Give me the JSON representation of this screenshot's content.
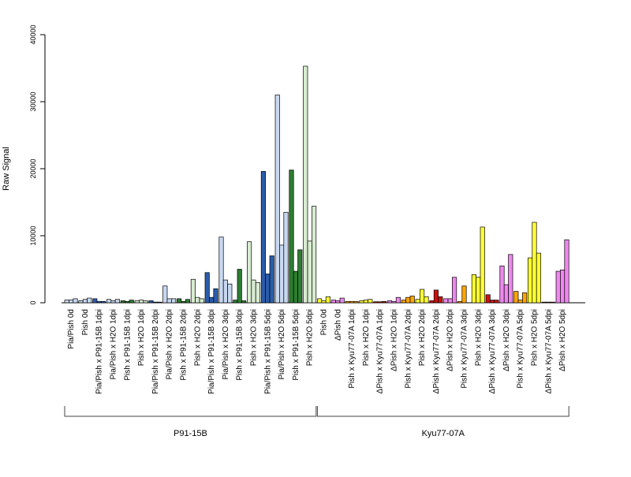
{
  "chart_data": {
    "type": "bar",
    "ylabel": "Raw Signal",
    "ylim": [
      0,
      40000
    ],
    "yticks": [
      0,
      10000,
      20000,
      30000,
      40000
    ],
    "ytick_labels": [
      "0",
      "10000",
      "20000",
      "30000",
      "40000"
    ],
    "replicates": 3,
    "groups": [
      {
        "label": "P91-15B",
        "first": 0,
        "last": 17
      },
      {
        "label": "Kyu77-07A",
        "first": 18,
        "last": 35
      }
    ],
    "categories": [
      "Pia/Pish 0d",
      "Pish 0d",
      "Pia/Pish x P91-15B 1dpi",
      "Pia/Pish x H2O 1dpi",
      "Pish x P91-15B 1dpi",
      "Pish x H2O 1dpi",
      "Pia/Pish x P91-15B 2dpi",
      "Pia/Pish x H2O 2dpi",
      "Pish x P91-15B 2dpi",
      "Pish x H2O 2dpi",
      "Pia/Pish x P91-15B 3dpi",
      "Pia/Pish x H2O 3dpi",
      "Pish x P91-15B 3dpi",
      "Pish x H2O 3dpi",
      "Pia/Pish x P91-15B 5dpi",
      "Pia/Pish x H2O 5dpi",
      "Pish x P91-15B 5dpi",
      "Pish x H2O 5dpi",
      "Pish 0d",
      "ΔPish 0d",
      "Pish x Kyu77-07A 1dpi",
      "Pish x H2O 1dpi",
      "ΔPish x Kyu77-07A 1dpi",
      "ΔPish x H2O 1dpi",
      "Pish x Kyu77-07A 2dpi",
      "Pish x H2O 2dpi",
      "ΔPish x Kyu77-07A 2dpi",
      "ΔPish x H2O 2dpi",
      "Pish x Kyu77-07A 3dpi",
      "Pish x H2O 3dpi",
      "ΔPish x Kyu77-07A 3dpi",
      "ΔPish x H2O 3dpi",
      "Pish x Kyu77-07A 5dpi",
      "Pish x H2O 5dpi",
      "ΔPish x Kyu77-07A 5dpi",
      "ΔPish x H2O 5dpi"
    ],
    "colors": [
      "#c8d8f0",
      "#c8d8f0",
      "#2a5caa",
      "#c8d8f0",
      "#2e7d32",
      "#d8ecd0",
      "#2a5caa",
      "#c8d8f0",
      "#2e7d32",
      "#d8ecd0",
      "#2a5caa",
      "#c8d8f0",
      "#2e7d32",
      "#d8ecd0",
      "#2a5caa",
      "#c8d8f0",
      "#2e7d32",
      "#d8ecd0",
      "#ffff33",
      "#ee88ee",
      "#ffa500",
      "#ffff33",
      "#cc1111",
      "#ee88ee",
      "#ffa500",
      "#ffff33",
      "#cc1111",
      "#ee88ee",
      "#ffa500",
      "#ffff33",
      "#cc1111",
      "#ee88ee",
      "#ffa500",
      "#ffff33",
      "#cc1111",
      "#ee88ee"
    ],
    "series": [
      {
        "values": [
          400,
          300,
          600,
          500,
          300,
          300,
          300,
          2500,
          600,
          3500,
          4500,
          9800,
          400,
          9100,
          19600,
          31000,
          19800,
          35300,
          600,
          400,
          200,
          300,
          150,
          300,
          400,
          500,
          300,
          600,
          200,
          4200,
          1200,
          5500,
          1700,
          6700,
          100,
          4700
        ]
      },
      {
        "values": [
          400,
          500,
          200,
          300,
          200,
          400,
          100,
          600,
          200,
          800,
          800,
          3400,
          5000,
          3400,
          4300,
          8600,
          4700,
          9200,
          300,
          300,
          200,
          400,
          150,
          200,
          800,
          2000,
          1900,
          600,
          2500,
          3800,
          400,
          2700,
          400,
          12000,
          100,
          4900
        ]
      },
      {
        "values": [
          600,
          700,
          200,
          500,
          400,
          300,
          100,
          600,
          500,
          600,
          2100,
          2800,
          300,
          3000,
          7000,
          13500,
          7900,
          14400,
          900,
          700,
          200,
          500,
          200,
          800,
          1000,
          900,
          900,
          3800,
          0,
          11300,
          400,
          7200,
          1500,
          7400,
          100,
          9400
        ]
      }
    ]
  }
}
